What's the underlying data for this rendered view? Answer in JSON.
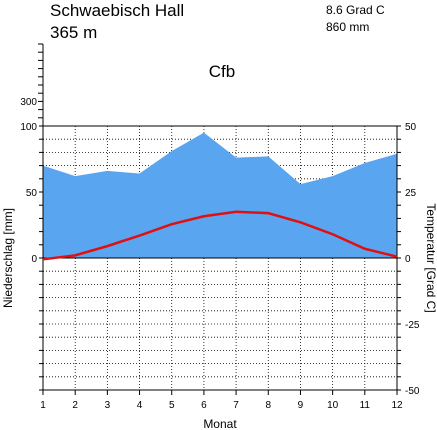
{
  "header": {
    "station": "Schwaebisch Hall",
    "elevation": "365 m",
    "mean_temp": "8.6 Grad C",
    "annual_precip": "860 mm",
    "climate_class": "Cfb"
  },
  "chart_data": {
    "type": "area",
    "title": "Schwaebisch Hall",
    "xlabel": "Monat",
    "ylabel_left": "Niederschlag [mm]",
    "ylabel_right": "Temperatur [Grad C]",
    "x": [
      1,
      2,
      3,
      4,
      5,
      6,
      7,
      8,
      9,
      10,
      11,
      12
    ],
    "x_ticks": [
      "1",
      "2",
      "3",
      "4",
      "5",
      "6",
      "7",
      "8",
      "9",
      "10",
      "11",
      "12"
    ],
    "precip_ticks": [
      "0",
      "50",
      "100",
      "300"
    ],
    "temp_ticks": [
      "50",
      "25",
      "0",
      "-25",
      "-50"
    ],
    "precip_ylim": [
      0,
      100
    ],
    "temp_ylim": [
      -50,
      50
    ],
    "grid": true,
    "series": [
      {
        "name": "Niederschlag",
        "type": "area",
        "unit": "mm",
        "color": "#5aa5f0",
        "values": [
          70,
          62,
          66,
          64,
          81,
          95,
          76,
          77,
          56,
          62,
          72,
          79
        ]
      },
      {
        "name": "Temperatur",
        "type": "line",
        "unit": "Grad C",
        "color": "#e01010",
        "values": [
          -0.5,
          1,
          4.5,
          8.5,
          12.8,
          15.8,
          17.5,
          17,
          13.5,
          9,
          3.5,
          0.5
        ]
      }
    ]
  }
}
